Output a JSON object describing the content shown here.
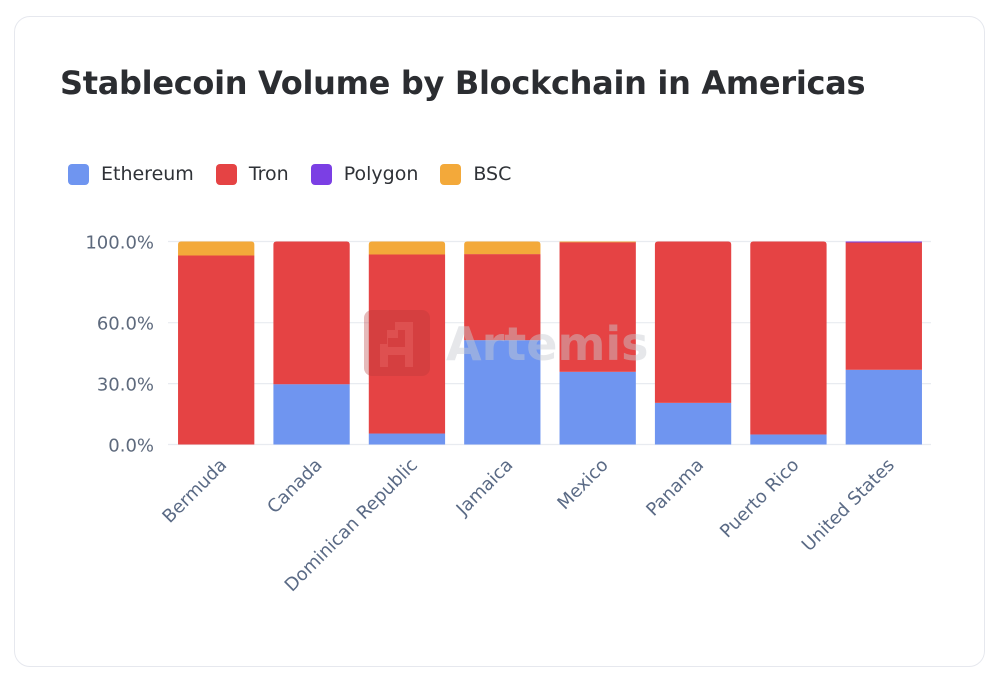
{
  "chart_data": {
    "type": "bar",
    "stacked": true,
    "normalized": true,
    "title": "Stablecoin Volume by Blockchain in Americas",
    "xlabel": "",
    "ylabel": "",
    "ylim": [
      0,
      100
    ],
    "yticks": [
      0,
      30,
      60,
      100
    ],
    "ytick_labels": [
      "0.0%",
      "30.0%",
      "60.0%",
      "100.0%"
    ],
    "grid": true,
    "legend_position": "top-left",
    "categories": [
      "Bermuda",
      "Canada",
      "Dominican Republic",
      "Jamaica",
      "Mexico",
      "Panama",
      "Puerto Rico",
      "United States"
    ],
    "series": [
      {
        "name": "Ethereum",
        "color": "#6f95f0",
        "values": [
          0.0,
          29.7,
          5.4,
          51.4,
          35.8,
          20.5,
          4.9,
          36.8
        ]
      },
      {
        "name": "Tron",
        "color": "#e54344",
        "values": [
          93.1,
          70.3,
          88.2,
          42.4,
          63.9,
          79.5,
          95.1,
          62.7
        ]
      },
      {
        "name": "Polygon",
        "color": "#7b3fe4",
        "values": [
          0.0,
          0.0,
          0.0,
          0.0,
          0.0,
          0.0,
          0.0,
          0.5
        ]
      },
      {
        "name": "BSC",
        "color": "#f3a93a",
        "values": [
          6.9,
          0.0,
          6.4,
          6.2,
          0.3,
          0.0,
          0.0,
          0.0
        ]
      }
    ]
  },
  "legend": [
    {
      "label": "Ethereum",
      "color": "#6f95f0"
    },
    {
      "label": "Tron",
      "color": "#e54344"
    },
    {
      "label": "Polygon",
      "color": "#7b3fe4"
    },
    {
      "label": "BSC",
      "color": "#f3a93a"
    }
  ],
  "watermark": {
    "text": "Artemis",
    "icon": "artemis-logo-icon"
  }
}
